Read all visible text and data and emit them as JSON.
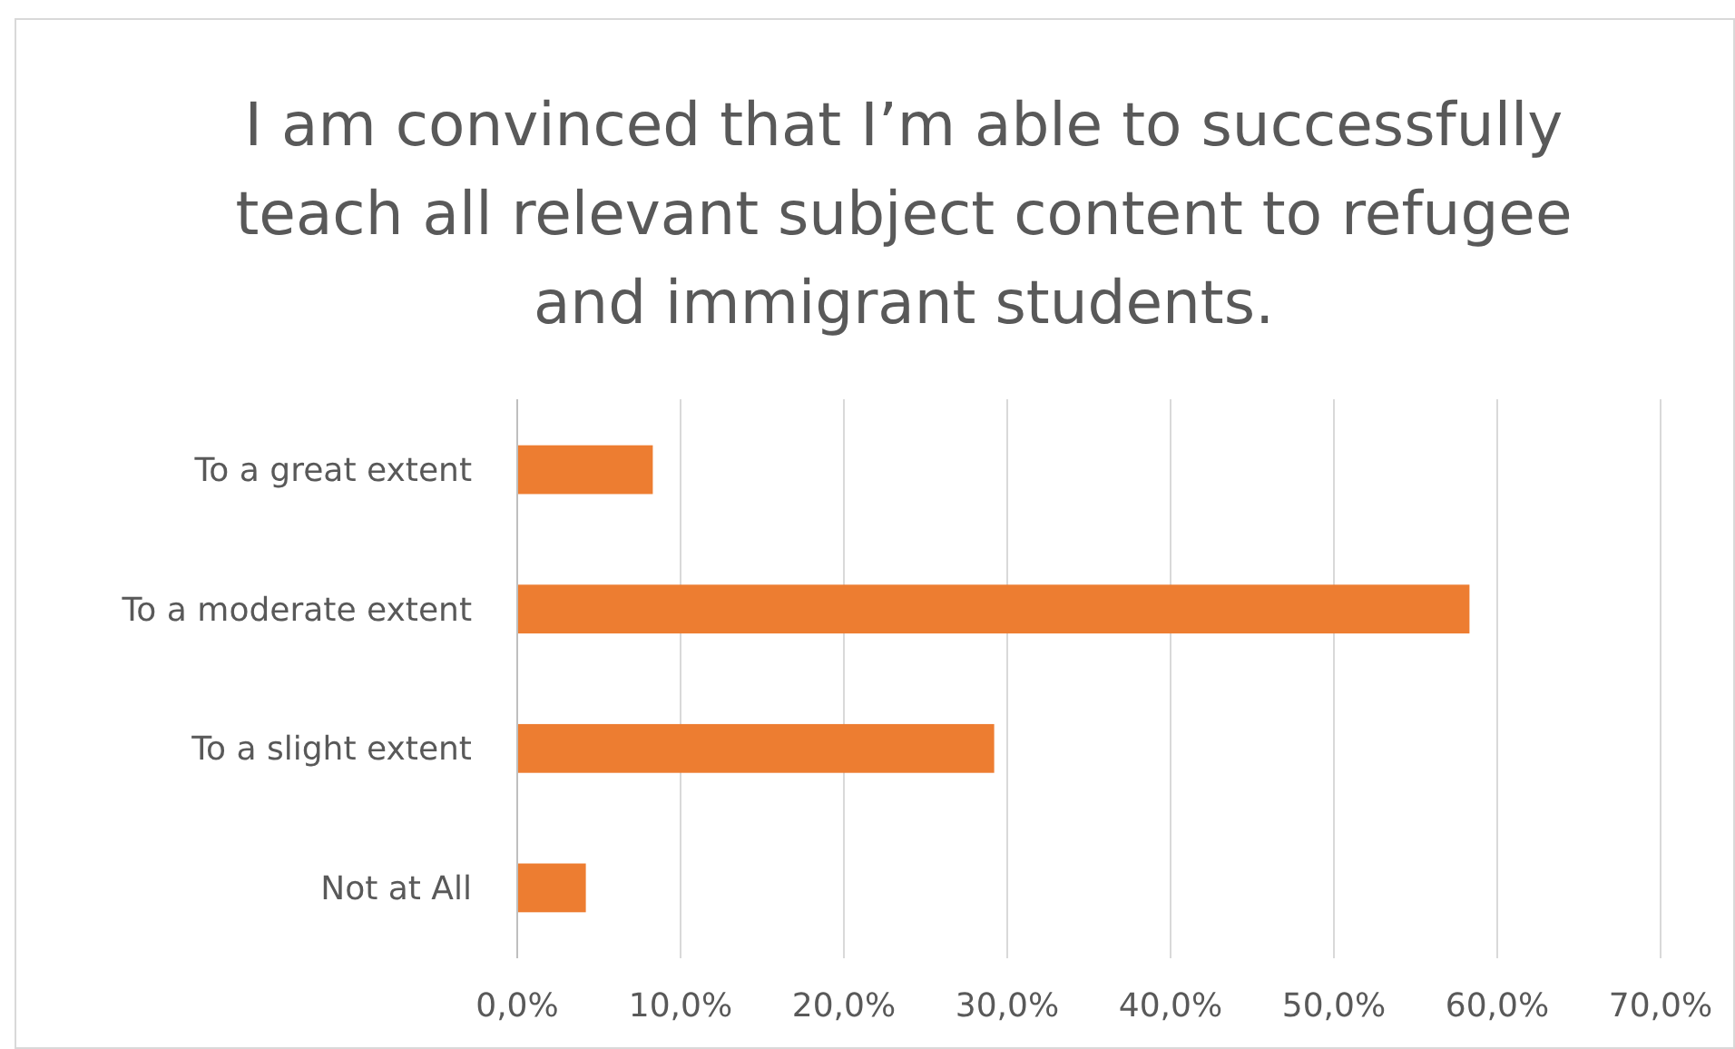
{
  "chart_data": {
    "type": "bar",
    "orientation": "horizontal",
    "title": "I am convinced that I’m able to successfully teach all relevant subject content to refugee and immigrant students.",
    "categories": [
      "To a great extent",
      "To a moderate extent",
      "To a slight extent",
      "Not at All"
    ],
    "values": [
      8.3,
      58.3,
      29.2,
      4.2
    ],
    "color": "#ed7d31",
    "xlim": [
      0,
      70
    ],
    "xticks": [
      {
        "value": 0,
        "label": "0,0%"
      },
      {
        "value": 10,
        "label": "10,0%"
      },
      {
        "value": 20,
        "label": "20,0%"
      },
      {
        "value": 30,
        "label": "30,0%"
      },
      {
        "value": 40,
        "label": "40,0%"
      },
      {
        "value": 50,
        "label": "50,0%"
      },
      {
        "value": 60,
        "label": "60,0%"
      },
      {
        "value": 70,
        "label": "70,0%"
      }
    ],
    "grid": "x"
  }
}
